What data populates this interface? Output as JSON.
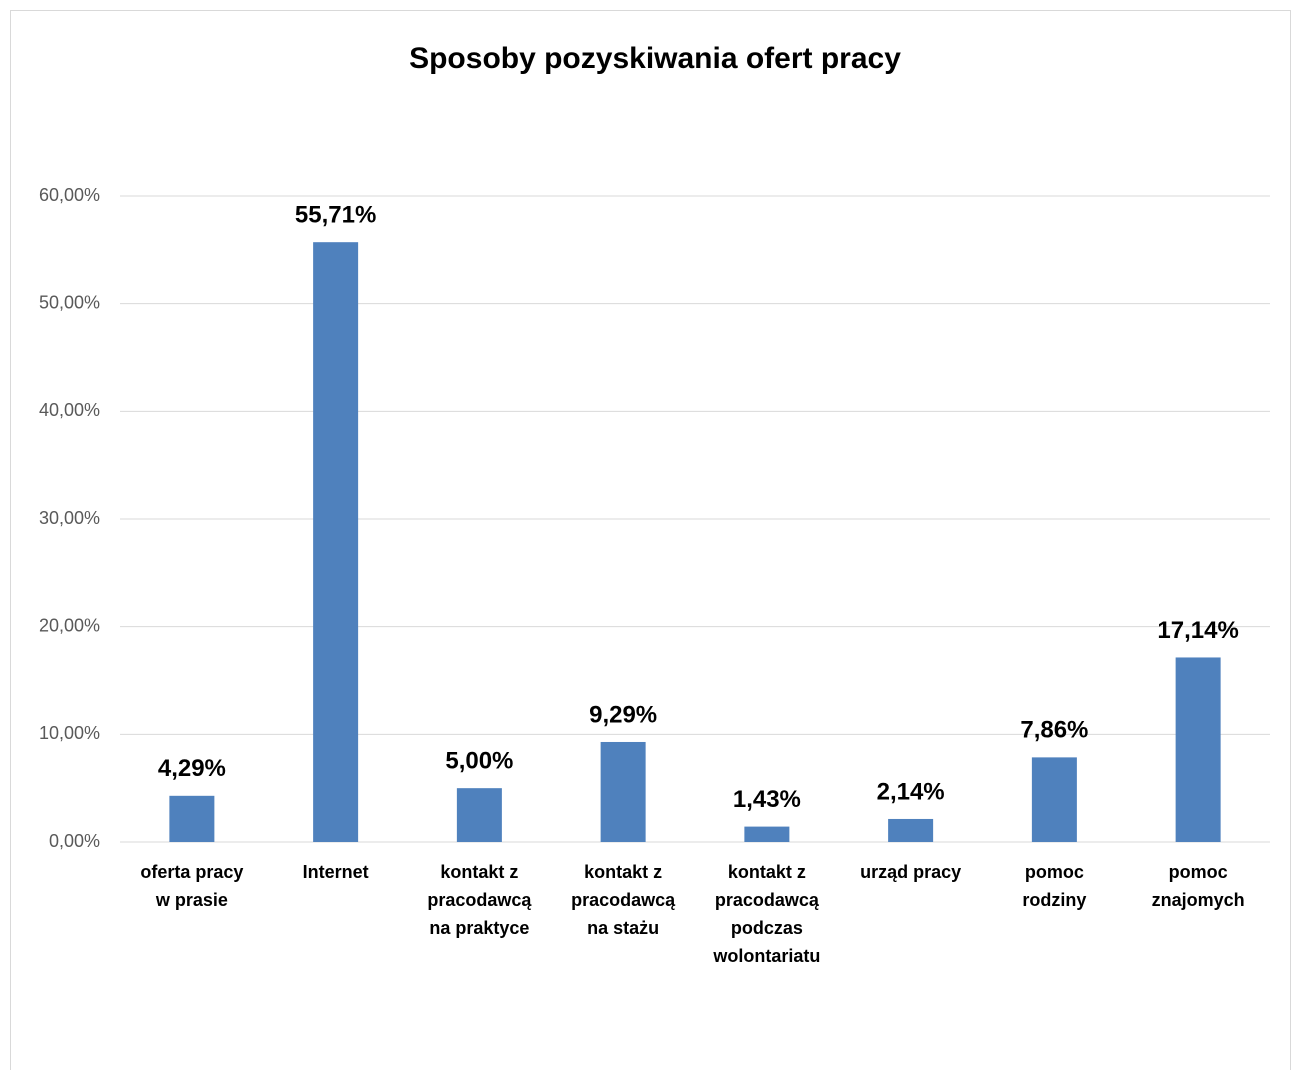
{
  "chart_data": {
    "type": "bar",
    "title": "Sposoby pozyskiwania ofert pracy",
    "categories": [
      "oferta pracy w prasie",
      "Internet",
      "kontakt z pracodawcą na praktyce",
      "kontakt z pracodawcą na stażu",
      "kontakt z pracodawcą podczas wolontariatu",
      "urząd pracy",
      "pomoc rodziny",
      "pomoc znajomych"
    ],
    "values": [
      4.29,
      55.71,
      5.0,
      9.29,
      1.43,
      2.14,
      7.86,
      17.14
    ],
    "value_labels": [
      "4,29%",
      "55,71%",
      "5,00%",
      "9,29%",
      "1,43%",
      "2,14%",
      "7,86%",
      "17,14%"
    ],
    "color": "#4f81bd",
    "ylim": [
      0,
      60
    ],
    "yticks": [
      {
        "value": 0,
        "label": "0,00%"
      },
      {
        "value": 10,
        "label": "10,00%"
      },
      {
        "value": 20,
        "label": "20,00%"
      },
      {
        "value": 30,
        "label": "30,00%"
      },
      {
        "value": 40,
        "label": "40,00%"
      },
      {
        "value": 50,
        "label": "50,00%"
      },
      {
        "value": 60,
        "label": "60,00%"
      }
    ],
    "grid": true
  }
}
